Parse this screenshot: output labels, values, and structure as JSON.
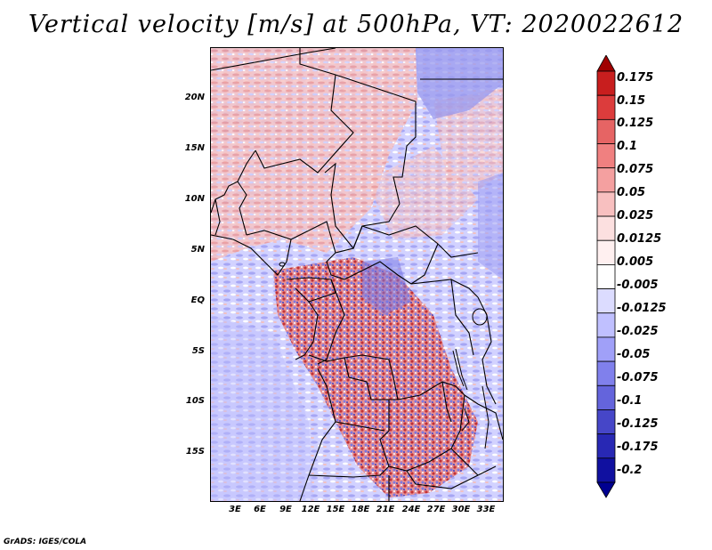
{
  "title": "Vertical velocity [m/s] at 500hPa, VT: 2020022612",
  "credit": "GrADS: IGES/COLA",
  "y_axis": [
    "20N",
    "15N",
    "10N",
    "5N",
    "EQ",
    "5S",
    "10S",
    "15S"
  ],
  "x_axis": [
    "3E",
    "6E",
    "9E",
    "12E",
    "15E",
    "18E",
    "21E",
    "24E",
    "27E",
    "30E",
    "33E"
  ],
  "colorbar": {
    "labels": [
      "0.175",
      "0.15",
      "0.125",
      "0.1",
      "0.075",
      "0.05",
      "0.025",
      "0.0125",
      "0.005",
      "-0.005",
      "-0.0125",
      "-0.025",
      "-0.05",
      "-0.075",
      "-0.1",
      "-0.125",
      "-0.175",
      "-0.2"
    ],
    "colors": [
      "#a00000",
      "#c81e1e",
      "#dc3c3c",
      "#e66464",
      "#f08080",
      "#f4a0a0",
      "#f8c0c0",
      "#fce0e0",
      "#fff0f0",
      "#ffffff",
      "#dcdcff",
      "#c0c0ff",
      "#a0a0f8",
      "#8080ec",
      "#6464dc",
      "#4646c8",
      "#2828b4",
      "#1010a0",
      "#000090"
    ]
  }
}
